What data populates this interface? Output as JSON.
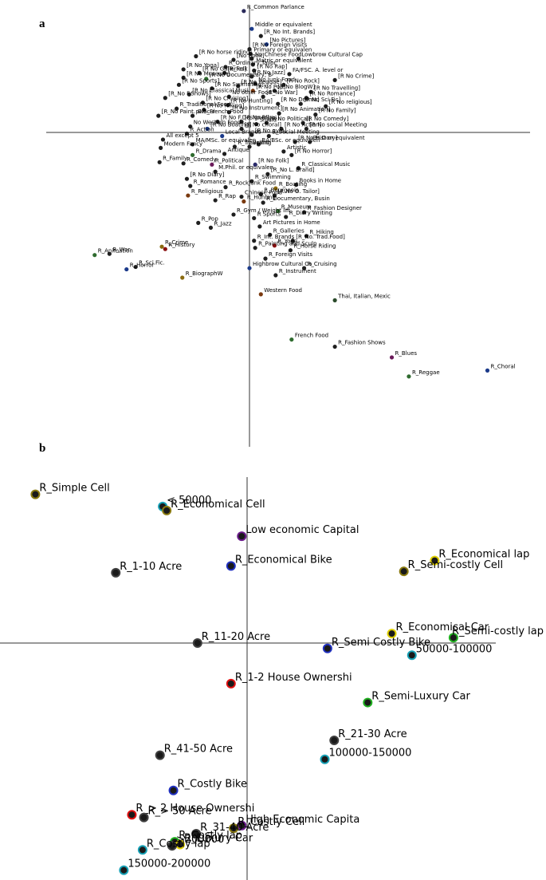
{
  "figure": {
    "panel_a_letter": "a",
    "panel_b_letter": "b"
  },
  "chart_data": [
    {
      "type": "scatter",
      "panel": "a",
      "xlim": [
        -1.55,
        2.7
      ],
      "ylim": [
        -2.7,
        1.0
      ],
      "grid": false,
      "point_default_color": "#1f1f1f",
      "points": [
        {
          "label": "R_Common Parlance",
          "x": -0.05,
          "y": 1.02,
          "c": "#2a2a5a"
        },
        {
          "label": "Middle or equivalent",
          "x": 0.02,
          "y": 0.87,
          "c": "#1b3a8a"
        },
        {
          "label": "[R_No Int. Brands]",
          "x": 0.1,
          "y": 0.81
        },
        {
          "label": "[No Pictures]",
          "x": 0.15,
          "y": 0.74,
          "c": "#1b3a8a"
        },
        {
          "label": "[R No Foreign Visits",
          "x": 0.0,
          "y": 0.7
        },
        {
          "label": "Primary or equivalen",
          "x": 0.01,
          "y": 0.66
        },
        {
          "label": "[R No horse riding]",
          "x": -0.47,
          "y": 0.64
        },
        {
          "label": "[No Book]",
          "x": -0.14,
          "y": 0.61
        },
        {
          "label": "No Chinese Food",
          "x": 0.02,
          "y": 0.62
        },
        {
          "label": "Matric or equivalent",
          "x": 0.03,
          "y": 0.57
        },
        {
          "label": "Lowbrow Cultural Cap",
          "x": 0.43,
          "y": 0.62
        },
        {
          "label": "R_Ordinary Tailor",
          "x": -0.21,
          "y": 0.55
        },
        {
          "label": "[R No Yoga]",
          "x": -0.58,
          "y": 0.53
        },
        {
          "label": "[R No Galleries]",
          "x": -0.44,
          "y": 0.5
        },
        {
          "label": "[R_Folk",
          "x": -0.22,
          "y": 0.5
        },
        {
          "label": "[R No Rap]",
          "x": 0.04,
          "y": 0.52
        },
        {
          "label": "FA/FSC. A. level or",
          "x": 0.35,
          "y": 0.49
        },
        {
          "label": "[R No Crime]",
          "x": 0.75,
          "y": 0.44
        },
        {
          "label": "[R No Museum]",
          "x": -0.58,
          "y": 0.46
        },
        {
          "label": "[R No Documentary, B",
          "x": -0.38,
          "y": 0.45,
          "c": "#2f6b2f"
        },
        {
          "label": "[R No Jazz]",
          "x": 0.02,
          "y": 0.47
        },
        {
          "label": "No Junk Food",
          "x": 0.05,
          "y": 0.41
        },
        {
          "label": "[R No Reggae]",
          "x": -0.1,
          "y": 0.39
        },
        {
          "label": "[R No Rock]",
          "x": 0.3,
          "y": 0.4
        },
        {
          "label": "[R No Sports]",
          "x": -0.62,
          "y": 0.4
        },
        {
          "label": "[R No Swimming]",
          "x": -0.33,
          "y": 0.37
        },
        {
          "label": "[R No Pop]",
          "x": 0.03,
          "y": 0.35,
          "c": "#7a3a10"
        },
        {
          "label": "[R No BlogW]",
          "x": 0.22,
          "y": 0.35
        },
        {
          "label": "[R No Travelling]",
          "x": 0.54,
          "y": 0.34
        },
        {
          "label": "[R No Classical Musi",
          "x": -0.53,
          "y": 0.32
        },
        {
          "label": "No other Food",
          "x": -0.18,
          "y": 0.3
        },
        {
          "label": "[R_No War]",
          "x": 0.12,
          "y": 0.3
        },
        {
          "label": "[R No Romance]",
          "x": 0.5,
          "y": 0.29
        },
        {
          "label": "[R_No F.Shows]",
          "x": -0.74,
          "y": 0.29
        },
        {
          "label": "[R No Cruising]",
          "x": -0.41,
          "y": 0.25
        },
        {
          "label": "[R No Hunting]",
          "x": -0.19,
          "y": 0.23
        },
        {
          "label": "[R No Drama]",
          "x": 0.25,
          "y": 0.24
        },
        {
          "label": "[R No Sci.Fic]",
          "x": 0.45,
          "y": 0.24
        },
        {
          "label": "[R No religious]",
          "x": 0.67,
          "y": 0.22
        },
        {
          "label": "R_Traditional Food",
          "x": -0.64,
          "y": 0.2
        },
        {
          "label": "[R No Hiking]",
          "x": -0.4,
          "y": 0.19
        },
        {
          "label": "[R No Instrument]",
          "x": -0.18,
          "y": 0.17
        },
        {
          "label": "[R No Animation]",
          "x": 0.26,
          "y": 0.16
        },
        {
          "label": "[R No Family]",
          "x": 0.58,
          "y": 0.15
        },
        {
          "label": "[R_No Paint. & Scul",
          "x": -0.8,
          "y": 0.14
        },
        {
          "label": "pNo_French Food",
          "x": -0.5,
          "y": 0.14
        },
        {
          "label": "[R No F.Designer]",
          "x": -0.28,
          "y": 0.09
        },
        {
          "label": "[R No Blues]",
          "x": -0.07,
          "y": 0.09
        },
        {
          "label": "Shield",
          "x": 0.06,
          "y": 0.07
        },
        {
          "label": "[R No Political]",
          "x": 0.15,
          "y": 0.08
        },
        {
          "label": "[R No Comedy]",
          "x": 0.47,
          "y": 0.08
        },
        {
          "label": "No Western Food",
          "x": -0.52,
          "y": 0.05
        },
        {
          "label": "[R No Boating]",
          "x": -0.37,
          "y": 0.03,
          "c": "#1b3a8a"
        },
        {
          "label": "[R No choral]",
          "x": -0.07,
          "y": 0.03
        },
        {
          "label": "[R No Action]",
          "x": 0.28,
          "y": 0.03
        },
        {
          "label": "[R No social Meeting",
          "x": 0.5,
          "y": 0.03
        },
        {
          "label": "R_Action",
          "x": -0.55,
          "y": -0.01
        },
        {
          "label": "Local Brands",
          "x": -0.24,
          "y": -0.03,
          "c": "#1b3a8a"
        },
        {
          "label": "[R No gym]",
          "x": 0.02,
          "y": -0.02
        },
        {
          "label": "R_Social Meeting",
          "x": 0.17,
          "y": -0.03
        },
        {
          "label": "All except 5",
          "x": -0.76,
          "y": -0.06
        },
        {
          "label": "[R No History]",
          "x": 0.4,
          "y": -0.08
        },
        {
          "label": "MA/MSc. or equivalen",
          "x": -0.5,
          "y": -0.1
        },
        {
          "label": "BA/BSc. or equivalen",
          "x": 0.08,
          "y": -0.1
        },
        {
          "label": "Ph.D or equivalent",
          "x": 0.53,
          "y": -0.08
        },
        {
          "label": "Modern Fancy",
          "x": -0.78,
          "y": -0.13
        },
        {
          "label": "R_Travelling",
          "x": -0.13,
          "y": -0.12
        },
        {
          "label": "Brand",
          "x": 0.0,
          "y": -0.12
        },
        {
          "label": "Artistic",
          "x": 0.3,
          "y": -0.16
        },
        {
          "label": "R_Drama",
          "x": -0.5,
          "y": -0.19,
          "c": "#2f6b2f"
        },
        {
          "label": "Antique",
          "x": -0.22,
          "y": -0.18
        },
        {
          "label": "[R No Horror]",
          "x": 0.37,
          "y": -0.19
        },
        {
          "label": "R_Family",
          "x": -0.79,
          "y": -0.25
        },
        {
          "label": "R_Comedy",
          "x": -0.58,
          "y": -0.26
        },
        {
          "label": "R_Political",
          "x": -0.33,
          "y": -0.27,
          "c": "#6a1a5a"
        },
        {
          "label": "M.Phil. or equivalen",
          "x": -0.3,
          "y": -0.33
        },
        {
          "label": "[R No Folk]",
          "x": 0.05,
          "y": -0.27,
          "c": "#2a2a6a"
        },
        {
          "label": "R_Classical Music",
          "x": 0.43,
          "y": -0.3
        },
        {
          "label": "[R No Diary]",
          "x": -0.55,
          "y": -0.39
        },
        {
          "label": "[R_No L. Brand]",
          "x": 0.16,
          "y": -0.35
        },
        {
          "label": "R_Swimming",
          "x": 0.02,
          "y": -0.41
        },
        {
          "label": "R_Romance",
          "x": -0.52,
          "y": -0.45
        },
        {
          "label": "Books in Home",
          "x": 0.41,
          "y": -0.44
        },
        {
          "label": "R_RockJunk Food",
          "x": -0.21,
          "y": -0.46
        },
        {
          "label": "R_Boating",
          "x": 0.23,
          "y": -0.47,
          "c": "#8a6a10"
        },
        {
          "label": "R_Bourgeois",
          "x": 0.1,
          "y": -0.52
        },
        {
          "label": "Chinese Food",
          "x": -0.07,
          "y": -0.54
        },
        {
          "label": "[R No O. Tailor]",
          "x": 0.22,
          "y": -0.53
        },
        {
          "label": "R_Religious",
          "x": -0.54,
          "y": -0.53,
          "c": "#7a3a10"
        },
        {
          "label": "R_Rap",
          "x": -0.3,
          "y": -0.57
        },
        {
          "label": "R_Hunting",
          "x": -0.05,
          "y": -0.58,
          "c": "#7a3a10"
        },
        {
          "label": "R_Documentary, Busin",
          "x": 0.12,
          "y": -0.59
        },
        {
          "label": "R_Museum",
          "x": 0.25,
          "y": -0.66,
          "c": "#2f6b2f"
        },
        {
          "label": "R_Fashion Designer",
          "x": 0.48,
          "y": -0.67
        },
        {
          "label": "R_Gym / Weight lift",
          "x": -0.14,
          "y": -0.69
        },
        {
          "label": "R Sports",
          "x": 0.04,
          "y": -0.72
        },
        {
          "label": "R_Diary Writing",
          "x": 0.32,
          "y": -0.71
        },
        {
          "label": "R_Pop",
          "x": -0.45,
          "y": -0.76
        },
        {
          "label": "R_Jazz",
          "x": -0.34,
          "y": -0.8
        },
        {
          "label": "Art Pictures in Home",
          "x": 0.09,
          "y": -0.79
        },
        {
          "label": "R_Galleries",
          "x": 0.18,
          "y": -0.86
        },
        {
          "label": "R_Hiking",
          "x": 0.5,
          "y": -0.87
        },
        {
          "label": "R_Int. Brands",
          "x": 0.04,
          "y": -0.91
        },
        {
          "label": "[R_No. Trad.Food]",
          "x": 0.38,
          "y": -0.91
        },
        {
          "label": "R_Crime",
          "x": -0.77,
          "y": -0.96,
          "c": "#8a6a10"
        },
        {
          "label": "R_Yoga",
          "x": 0.22,
          "y": -0.95,
          "c": "#8a1010"
        },
        {
          "label": "R_Painting and Sculp",
          "x": 0.05,
          "y": -0.97
        },
        {
          "label": "R_History",
          "x": -0.74,
          "y": -0.98,
          "c": "#8a1010"
        },
        {
          "label": "R_Horse Riding",
          "x": 0.36,
          "y": -0.99
        },
        {
          "label": "R_War",
          "x": -1.23,
          "y": -1.02
        },
        {
          "label": "R_Animation",
          "x": -1.36,
          "y": -1.03,
          "c": "#2f6b2f"
        },
        {
          "label": "R_Foreign Visits",
          "x": 0.14,
          "y": -1.06
        },
        {
          "label": "Highbrow Cultural Ca",
          "x": 0.0,
          "y": -1.14,
          "c": "#1b3a8a"
        },
        {
          "label": "R_Sci.Fic.",
          "x": -1.0,
          "y": -1.13
        },
        {
          "label": "R_Horror",
          "x": -1.08,
          "y": -1.15,
          "c": "#1b3a8a"
        },
        {
          "label": "R_Cruising",
          "x": 0.48,
          "y": -1.14
        },
        {
          "label": "R_Instrument",
          "x": 0.23,
          "y": -1.2
        },
        {
          "label": "R_BiographW",
          "x": -0.59,
          "y": -1.22,
          "c": "#8a6a10"
        },
        {
          "label": "Western Food",
          "x": 0.1,
          "y": -1.36,
          "c": "#7a3a10"
        },
        {
          "label": "Thai, Italian, Mexic",
          "x": 0.75,
          "y": -1.41,
          "c": "#2a4a2a"
        },
        {
          "label": "French Food",
          "x": 0.37,
          "y": -1.74,
          "c": "#2f6b2f"
        },
        {
          "label": "R_Fashion Shows",
          "x": 0.75,
          "y": -1.8
        },
        {
          "label": "R_Blues",
          "x": 1.25,
          "y": -1.89,
          "c": "#6a1a5a"
        },
        {
          "label": "R_Choral",
          "x": 2.09,
          "y": -2.0,
          "c": "#1b3a8a"
        },
        {
          "label": "R_Reggae",
          "x": 1.4,
          "y": -2.05,
          "c": "#2f6b2f"
        }
      ]
    },
    {
      "type": "scatter",
      "panel": "b",
      "xlim": [
        -1.85,
        1.85
      ],
      "ylim": [
        -1.72,
        1.26
      ],
      "grid": false,
      "points": [
        {
          "label": "R_Simple Cell",
          "x": -1.58,
          "y": 1.1,
          "c": "#8a7a10"
        },
        {
          "label": "< 50000",
          "x": -0.63,
          "y": 1.01,
          "c": "#15a0b5"
        },
        {
          "label": "R_Economical Cell",
          "x": -0.6,
          "y": 0.98,
          "c": "#8a7a10"
        },
        {
          "label": "Low economic Capital",
          "x": -0.04,
          "y": 0.79,
          "c": "#6a1a8a"
        },
        {
          "label": "R_Economical lap",
          "x": 1.4,
          "y": 0.61,
          "c": "#e0d000"
        },
        {
          "label": "R_Economical Bike",
          "x": -0.12,
          "y": 0.57,
          "c": "#2030c0"
        },
        {
          "label": "R_Semi-costly Cell",
          "x": 1.17,
          "y": 0.53,
          "c": "#8a7a10"
        },
        {
          "label": "R_1-10 Acre",
          "x": -0.98,
          "y": 0.52,
          "c": "#404040"
        },
        {
          "label": "R_Economical Car",
          "x": 1.08,
          "y": 0.07,
          "c": "#e0d000"
        },
        {
          "label": "R_Semi-costly lap",
          "x": 1.54,
          "y": 0.04,
          "c": "#20b020"
        },
        {
          "label": "R_11-20 Acre",
          "x": -0.37,
          "y": 0.0,
          "c": "#404040"
        },
        {
          "label": "R_Semi Costly Bike",
          "x": 0.6,
          "y": -0.04,
          "c": "#2030c0"
        },
        {
          "label": "50000-100000",
          "x": 1.23,
          "y": -0.09,
          "c": "#15a0b5"
        },
        {
          "label": "R_1-2 House Ownershi",
          "x": -0.12,
          "y": -0.3,
          "c": "#e01010"
        },
        {
          "label": "R_Semi-Luxury Car",
          "x": 0.9,
          "y": -0.44,
          "c": "#20b020"
        },
        {
          "label": "R_21-30 Acre",
          "x": 0.65,
          "y": -0.72,
          "c": "#404040"
        },
        {
          "label": "R_41-50 Acre",
          "x": -0.65,
          "y": -0.83,
          "c": "#404040"
        },
        {
          "label": "100000-150000",
          "x": 0.58,
          "y": -0.86,
          "c": "#15a0b5"
        },
        {
          "label": "R_Costly Bike",
          "x": -0.55,
          "y": -1.09,
          "c": "#2030c0"
        },
        {
          "label": "R_> 2 House Ownershi",
          "x": -0.86,
          "y": -1.27,
          "c": "#e01010"
        },
        {
          "label": "R_> 50 Acre",
          "x": -0.77,
          "y": -1.29,
          "c": "#404040"
        },
        {
          "label": "High Economic Capita",
          "x": -0.04,
          "y": -1.35,
          "c": "#6a1a8a"
        },
        {
          "label": "R_Costly Cell",
          "x": -0.1,
          "y": -1.37,
          "c": "#8a7a10"
        },
        {
          "label": "R_31-40 Acre",
          "x": -0.38,
          "y": -1.41,
          "c": "#404040"
        },
        {
          "label": "R_Costly lap",
          "x": -0.54,
          "y": -1.47,
          "c": "#20b020"
        },
        {
          "label": "R_Luxury Car",
          "x": -0.5,
          "y": -1.49,
          "c": "#e0d000"
        },
        {
          "label": ">200000",
          "x": -0.56,
          "y": -1.5,
          "c": "#404040"
        },
        {
          "label": "150000-200000",
          "x": -0.92,
          "y": -1.68,
          "c": "#15a0b5"
        },
        {
          "label": "R_Costly lap",
          "x": -0.78,
          "y": -1.53,
          "c": "#15a0b5"
        }
      ]
    }
  ]
}
